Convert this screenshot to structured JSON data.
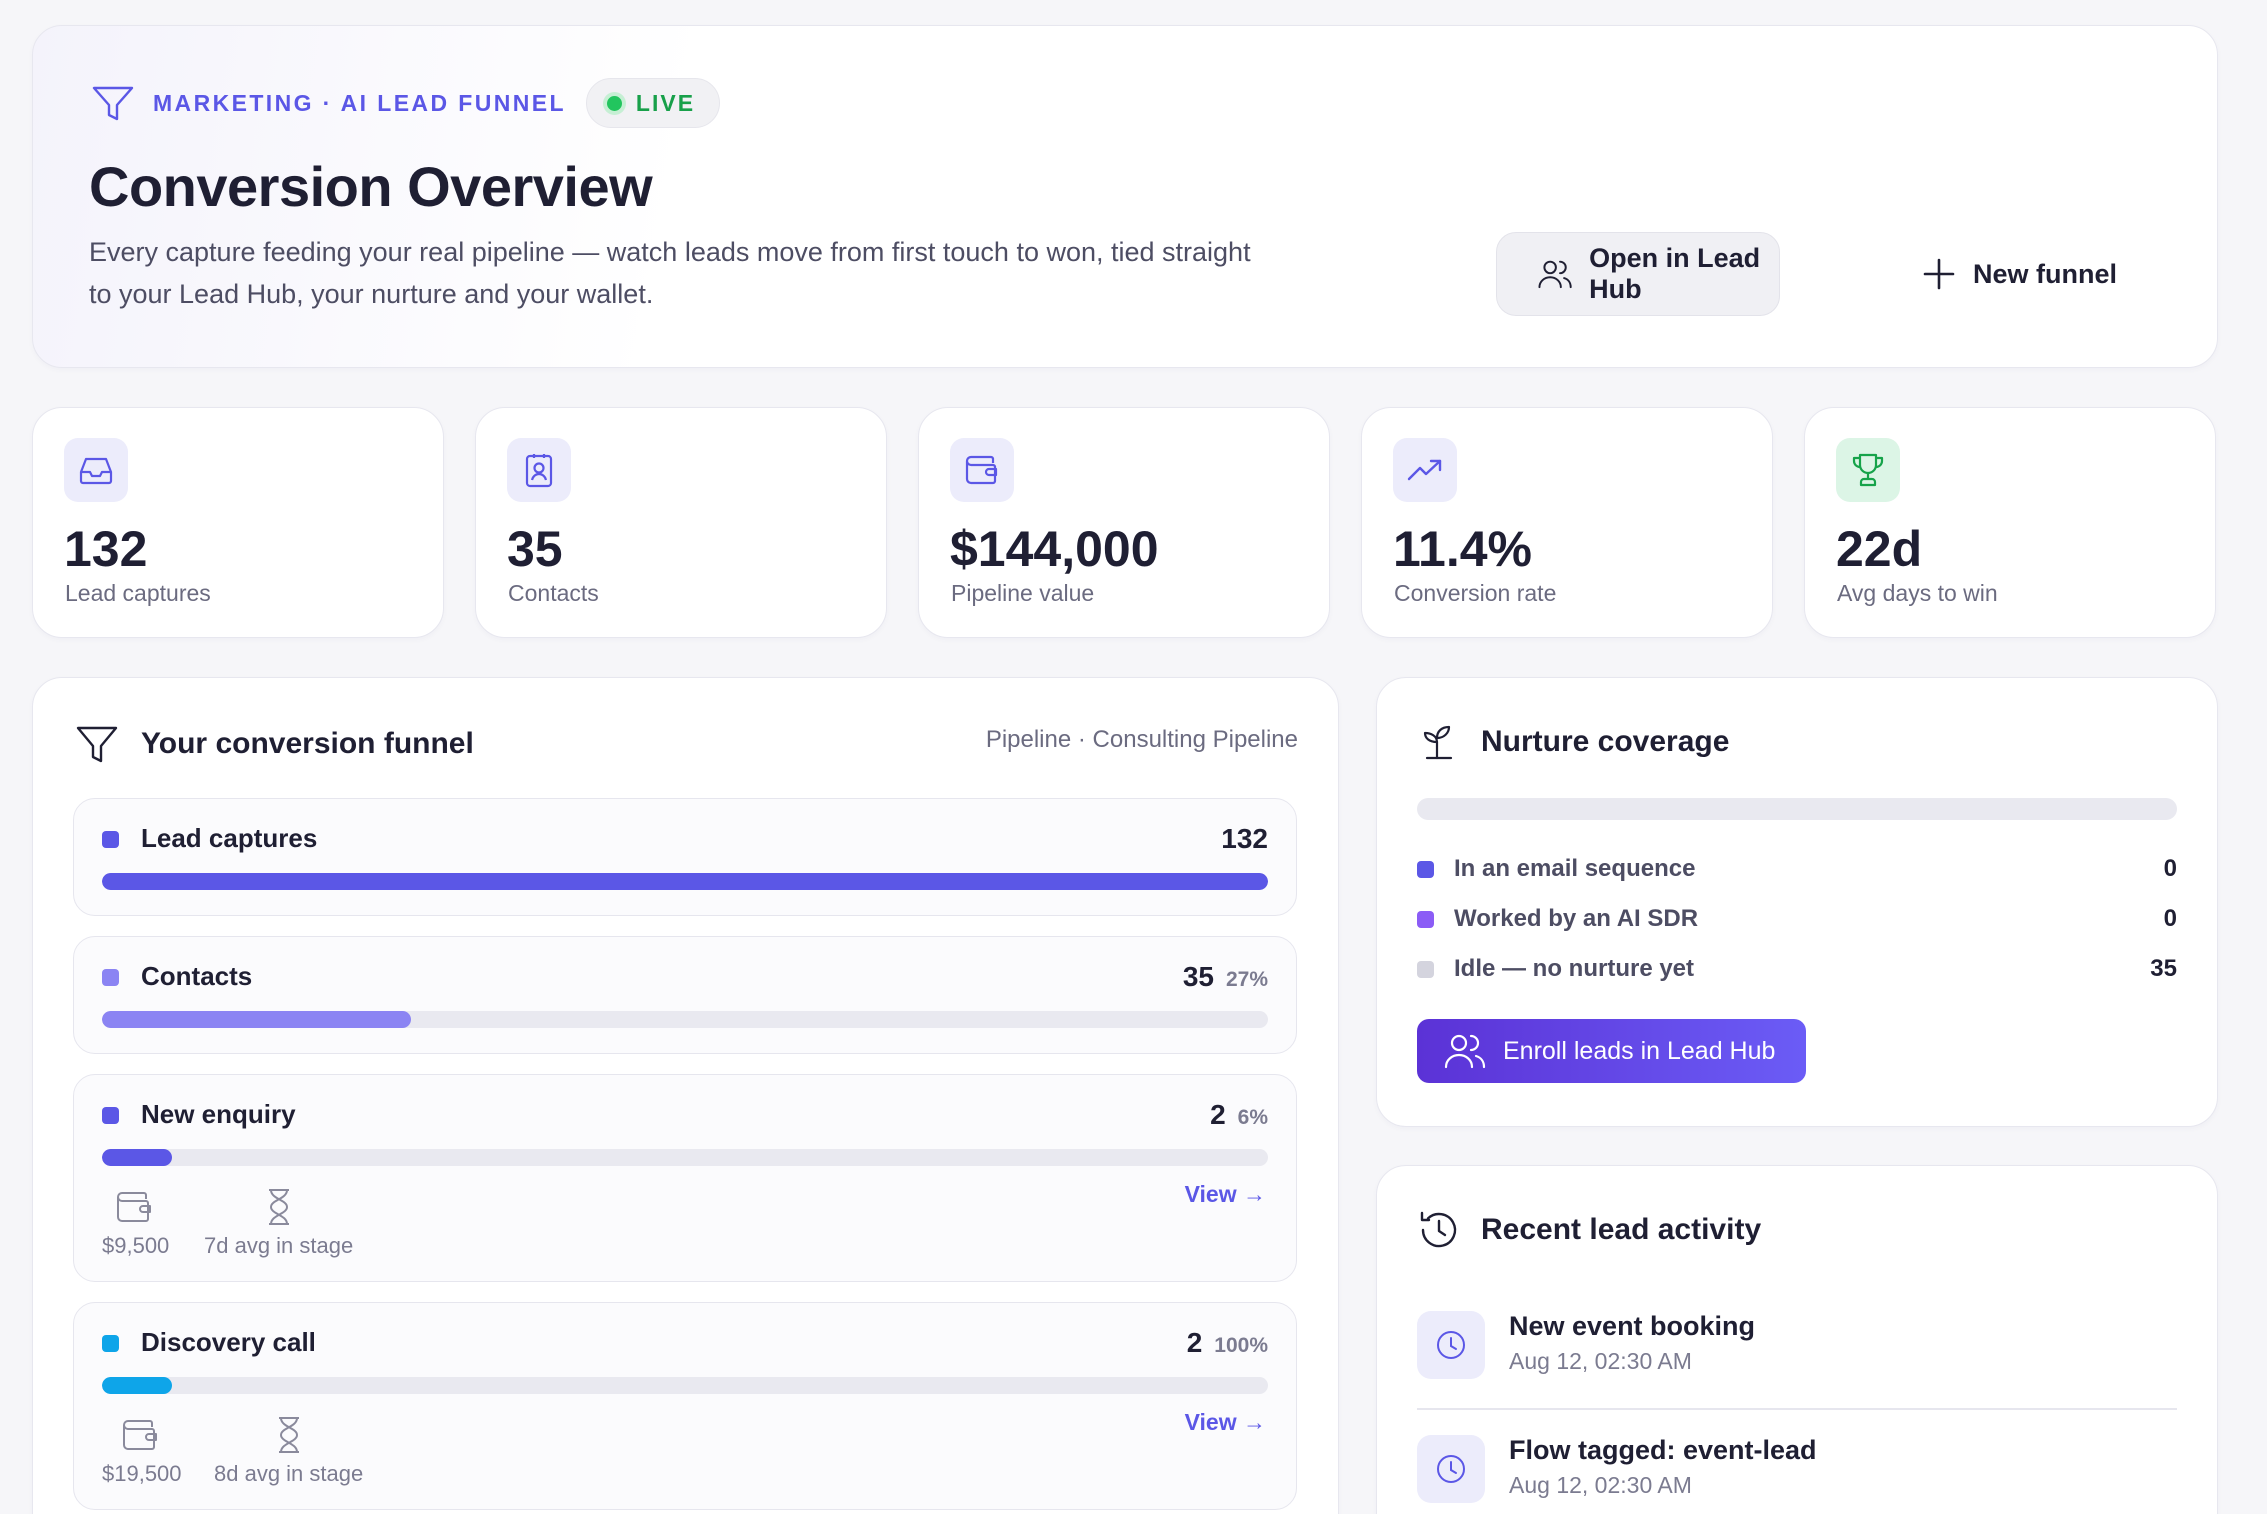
{
  "header": {
    "breadcrumb": "MARKETING · AI LEAD FUNNEL",
    "status": "LIVE",
    "title": "Conversion Overview",
    "description": "Every capture feeding your real pipeline — watch leads move from first touch to won, tied straight to your Lead Hub, your nurture and your wallet.",
    "open_button": "Open in Lead Hub",
    "new_button": "New funnel"
  },
  "stats": [
    {
      "value": "132",
      "label": "Lead captures",
      "icon": "inbox-icon"
    },
    {
      "value": "35",
      "label": "Contacts",
      "icon": "contact-card-icon"
    },
    {
      "value": "$144,000",
      "label": "Pipeline value",
      "icon": "wallet-icon"
    },
    {
      "value": "11.4%",
      "label": "Conversion rate",
      "icon": "trending-up-icon"
    },
    {
      "value": "22d",
      "label": "Avg days to win",
      "icon": "trophy-icon"
    }
  ],
  "funnel": {
    "title": "Your conversion funnel",
    "pipeline": "Pipeline · Consulting Pipeline",
    "stages": [
      {
        "name": "Lead captures",
        "count": "132",
        "percent": "",
        "fill": 1.0,
        "color": "#5b57e6"
      },
      {
        "name": "Contacts",
        "count": "35",
        "percent": "27%",
        "fill": 0.265,
        "color": "#8b84f3"
      },
      {
        "name": "New enquiry",
        "count": "2",
        "percent": "6%",
        "fill": 0.06,
        "color": "#5b57e6",
        "value": "$9,500",
        "avg": "7d avg in stage",
        "view": "View →"
      },
      {
        "name": "Discovery call",
        "count": "2",
        "percent": "100%",
        "fill": 0.06,
        "color": "#0ea5e9",
        "value": "$19,500",
        "avg": "8d avg in stage",
        "view": "View →"
      }
    ]
  },
  "nurture": {
    "title": "Nurture coverage",
    "rows": [
      {
        "label": "In an email sequence",
        "value": "0",
        "color": "#5b57e6"
      },
      {
        "label": "Worked by an AI SDR",
        "value": "0",
        "color": "#8b5cf6"
      },
      {
        "label": "Idle — no nurture yet",
        "value": "35",
        "color": "#d4d4de"
      }
    ],
    "button": "Enroll leads in Lead Hub"
  },
  "activity": {
    "title": "Recent lead activity",
    "items": [
      {
        "title": "New event booking",
        "time": "Aug 12, 02:30 AM"
      },
      {
        "title": "Flow tagged: event-lead",
        "time": "Aug 12, 02:30 AM"
      }
    ]
  }
}
